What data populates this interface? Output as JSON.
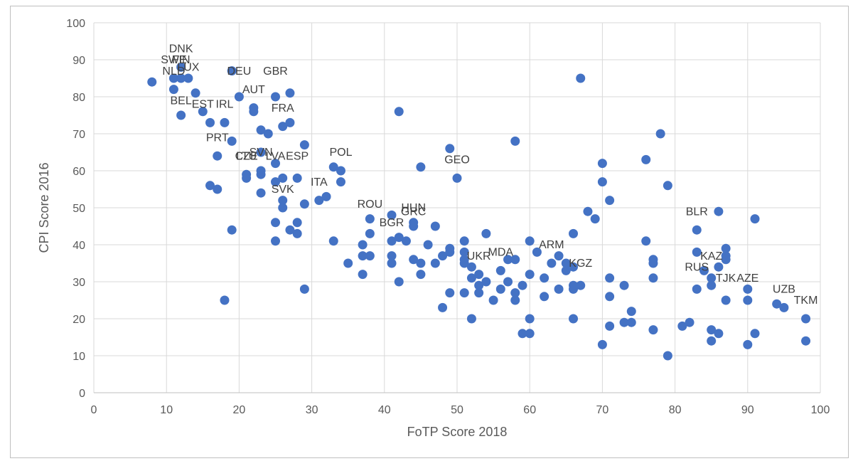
{
  "chart_data": {
    "type": "scatter",
    "xlabel": "FoTP Score 2018",
    "ylabel": "CPI Score 2016",
    "xlim": [
      0,
      100
    ],
    "ylim": [
      0,
      100
    ],
    "xticks": [
      "0",
      "10",
      "20",
      "30",
      "40",
      "50",
      "60",
      "70",
      "80",
      "90",
      "100"
    ],
    "yticks": [
      "0",
      "10",
      "20",
      "30",
      "40",
      "50",
      "60",
      "70",
      "80",
      "90",
      "100"
    ],
    "grid": "both",
    "legend": "none",
    "marker_color": "#4472c4",
    "points": [
      [
        8,
        84
      ],
      [
        11,
        85
      ],
      [
        11,
        82
      ],
      [
        12,
        88
      ],
      [
        12,
        85
      ],
      [
        13,
        85
      ],
      [
        14,
        81
      ],
      [
        12,
        75
      ],
      [
        15,
        76
      ],
      [
        16,
        73
      ],
      [
        18,
        73
      ],
      [
        19,
        87
      ],
      [
        19,
        68
      ],
      [
        17,
        64
      ],
      [
        16,
        56
      ],
      [
        17,
        55
      ],
      [
        19,
        44
      ],
      [
        18,
        25
      ],
      [
        20,
        80
      ],
      [
        22,
        77
      ],
      [
        22,
        76
      ],
      [
        23,
        71
      ],
      [
        24,
        70
      ],
      [
        25,
        80
      ],
      [
        27,
        81
      ],
      [
        27,
        73
      ],
      [
        26,
        72
      ],
      [
        29,
        67
      ],
      [
        23,
        65
      ],
      [
        25,
        62
      ],
      [
        21,
        59
      ],
      [
        21,
        58
      ],
      [
        23,
        60
      ],
      [
        23,
        59
      ],
      [
        25,
        57
      ],
      [
        26,
        58
      ],
      [
        28,
        58
      ],
      [
        26,
        52
      ],
      [
        26,
        50
      ],
      [
        23,
        54
      ],
      [
        25,
        46
      ],
      [
        25,
        41
      ],
      [
        27,
        44
      ],
      [
        28,
        46
      ],
      [
        28,
        43
      ],
      [
        29,
        51
      ],
      [
        29,
        28
      ],
      [
        33,
        61
      ],
      [
        34,
        60
      ],
      [
        34,
        57
      ],
      [
        31,
        52
      ],
      [
        32,
        53
      ],
      [
        33,
        41
      ],
      [
        35,
        35
      ],
      [
        37,
        40
      ],
      [
        37,
        37
      ],
      [
        37,
        32
      ],
      [
        38,
        47
      ],
      [
        38,
        43
      ],
      [
        38,
        37
      ],
      [
        41,
        48
      ],
      [
        41,
        41
      ],
      [
        41,
        37
      ],
      [
        41,
        35
      ],
      [
        42,
        76
      ],
      [
        42,
        42
      ],
      [
        42,
        30
      ],
      [
        43,
        41
      ],
      [
        44,
        46
      ],
      [
        44,
        45
      ],
      [
        44,
        36
      ],
      [
        45,
        61
      ],
      [
        45,
        35
      ],
      [
        45,
        32
      ],
      [
        46,
        40
      ],
      [
        47,
        45
      ],
      [
        47,
        35
      ],
      [
        48,
        37
      ],
      [
        48,
        23
      ],
      [
        49,
        66
      ],
      [
        49,
        39
      ],
      [
        49,
        38
      ],
      [
        49,
        27
      ],
      [
        50,
        58
      ],
      [
        51,
        41
      ],
      [
        51,
        38
      ],
      [
        51,
        36
      ],
      [
        51,
        35
      ],
      [
        51,
        27
      ],
      [
        52,
        34
      ],
      [
        52,
        31
      ],
      [
        52,
        20
      ],
      [
        53,
        32
      ],
      [
        53,
        29
      ],
      [
        53,
        27
      ],
      [
        54,
        43
      ],
      [
        54,
        30
      ],
      [
        55,
        25
      ],
      [
        56,
        33
      ],
      [
        56,
        28
      ],
      [
        57,
        36
      ],
      [
        57,
        30
      ],
      [
        58,
        68
      ],
      [
        58,
        36
      ],
      [
        58,
        27
      ],
      [
        58,
        25
      ],
      [
        59,
        29
      ],
      [
        59,
        16
      ],
      [
        60,
        41
      ],
      [
        60,
        32
      ],
      [
        60,
        20
      ],
      [
        60,
        16
      ],
      [
        61,
        38
      ],
      [
        62,
        31
      ],
      [
        62,
        26
      ],
      [
        63,
        35
      ],
      [
        64,
        37
      ],
      [
        64,
        28
      ],
      [
        65,
        35
      ],
      [
        65,
        33
      ],
      [
        66,
        43
      ],
      [
        66,
        34
      ],
      [
        66,
        29
      ],
      [
        66,
        28
      ],
      [
        66,
        20
      ],
      [
        67,
        85
      ],
      [
        67,
        29
      ],
      [
        68,
        49
      ],
      [
        69,
        47
      ],
      [
        70,
        62
      ],
      [
        70,
        57
      ],
      [
        70,
        13
      ],
      [
        71,
        52
      ],
      [
        71,
        31
      ],
      [
        71,
        26
      ],
      [
        71,
        18
      ],
      [
        73,
        29
      ],
      [
        73,
        19
      ],
      [
        74,
        22
      ],
      [
        74,
        19
      ],
      [
        76,
        63
      ],
      [
        76,
        41
      ],
      [
        77,
        36
      ],
      [
        77,
        35
      ],
      [
        77,
        31
      ],
      [
        77,
        17
      ],
      [
        78,
        70
      ],
      [
        79,
        56
      ],
      [
        79,
        10
      ],
      [
        81,
        18
      ],
      [
        82,
        19
      ],
      [
        83,
        44
      ],
      [
        83,
        38
      ],
      [
        83,
        28
      ],
      [
        84,
        33
      ],
      [
        85,
        31
      ],
      [
        85,
        29
      ],
      [
        85,
        17
      ],
      [
        85,
        14
      ],
      [
        86,
        49
      ],
      [
        86,
        34
      ],
      [
        86,
        16
      ],
      [
        87,
        39
      ],
      [
        87,
        37
      ],
      [
        87,
        36
      ],
      [
        87,
        25
      ],
      [
        90,
        28
      ],
      [
        90,
        25
      ],
      [
        90,
        13
      ],
      [
        91,
        47
      ],
      [
        91,
        16
      ],
      [
        94,
        24
      ],
      [
        95,
        23
      ],
      [
        98,
        20
      ],
      [
        98,
        14
      ]
    ],
    "annotations": [
      {
        "text": "DNK",
        "x": 12,
        "y": 92
      },
      {
        "text": "SWE",
        "x": 11,
        "y": 89
      },
      {
        "text": "FIN",
        "x": 12,
        "y": 89
      },
      {
        "text": "NLD",
        "x": 11,
        "y": 86
      },
      {
        "text": "LUX",
        "x": 13,
        "y": 87
      },
      {
        "text": "BEL",
        "x": 12,
        "y": 78
      },
      {
        "text": "DEU",
        "x": 20,
        "y": 86
      },
      {
        "text": "GBR",
        "x": 25,
        "y": 86
      },
      {
        "text": "AUT",
        "x": 22,
        "y": 81
      },
      {
        "text": "EST",
        "x": 15,
        "y": 77
      },
      {
        "text": "IRL",
        "x": 18,
        "y": 77
      },
      {
        "text": "FRA",
        "x": 26,
        "y": 76
      },
      {
        "text": "PRT",
        "x": 17,
        "y": 68
      },
      {
        "text": "SVN",
        "x": 23,
        "y": 64
      },
      {
        "text": "CZE",
        "x": 21,
        "y": 63
      },
      {
        "text": "LTU",
        "x": 21,
        "y": 63
      },
      {
        "text": "LVA",
        "x": 25,
        "y": 63
      },
      {
        "text": "ESP",
        "x": 28,
        "y": 63
      },
      {
        "text": "POL",
        "x": 34,
        "y": 64
      },
      {
        "text": "GEO",
        "x": 50,
        "y": 62
      },
      {
        "text": "SVK",
        "x": 26,
        "y": 54
      },
      {
        "text": "ITA",
        "x": 31,
        "y": 56
      },
      {
        "text": "ROU",
        "x": 38,
        "y": 50
      },
      {
        "text": "HUN",
        "x": 44,
        "y": 49
      },
      {
        "text": "GRC",
        "x": 44,
        "y": 48
      },
      {
        "text": "BGR",
        "x": 41,
        "y": 45
      },
      {
        "text": "UKR",
        "x": 53,
        "y": 36
      },
      {
        "text": "MDA",
        "x": 56,
        "y": 37
      },
      {
        "text": "ARM",
        "x": 63,
        "y": 39
      },
      {
        "text": "KGZ",
        "x": 67,
        "y": 34
      },
      {
        "text": "BLR",
        "x": 83,
        "y": 48
      },
      {
        "text": "KAZ",
        "x": 85,
        "y": 36
      },
      {
        "text": "RUS",
        "x": 83,
        "y": 33
      },
      {
        "text": "TJK",
        "x": 87,
        "y": 30
      },
      {
        "text": "AZE",
        "x": 90,
        "y": 30
      },
      {
        "text": "UZB",
        "x": 95,
        "y": 27
      },
      {
        "text": "TKM",
        "x": 98,
        "y": 24
      }
    ]
  }
}
